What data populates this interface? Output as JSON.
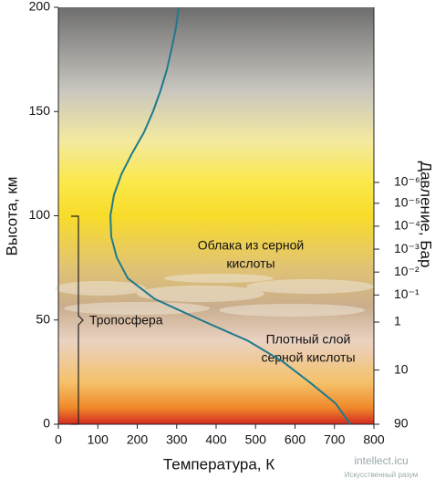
{
  "chart_data": {
    "type": "line",
    "xlabel": "Температура, К",
    "ylabel": "Высота, км",
    "y2label": "Давление, Бар",
    "x": [
      740,
      703,
      638,
      569,
      481,
      361,
      303,
      245,
      176,
      148,
      134,
      132,
      141,
      160,
      187,
      217,
      240,
      259,
      275,
      287,
      298,
      305
    ],
    "series": [
      {
        "color": "#1f7a8c",
        "values": [
          0,
          10,
          20,
          30,
          40,
          50,
          55,
          60,
          70,
          80,
          90,
          100,
          110,
          120,
          130,
          140,
          150,
          160,
          170,
          180,
          190,
          200
        ]
      }
    ],
    "xlim": [
      0,
      800
    ],
    "xticks": [
      0,
      100,
      200,
      300,
      400,
      500,
      600,
      700,
      800
    ],
    "ylim": [
      0,
      200
    ],
    "yticks": [
      0,
      50,
      100,
      150,
      200
    ],
    "pressure_levels": [
      {
        "altitude": 0,
        "label": "90"
      },
      {
        "altitude": 26,
        "label": "10"
      },
      {
        "altitude": 49,
        "label": "1"
      },
      {
        "altitude": 62,
        "label": "10⁻¹"
      },
      {
        "altitude": 73,
        "label": "10⁻²"
      },
      {
        "altitude": 84,
        "label": "10⁻³"
      },
      {
        "altitude": 95,
        "label": "10⁻⁴"
      },
      {
        "altitude": 106,
        "label": "10⁻⁵"
      },
      {
        "altitude": 116,
        "label": "10⁻⁶"
      }
    ],
    "annotations": [
      {
        "lines": [
          "Облака из серной",
          "кислоты"
        ]
      },
      {
        "lines": [
          "Плотный слой",
          "серной кислоты"
        ]
      },
      {
        "lines": [
          "Тропосфера"
        ]
      }
    ],
    "watermark": [
      "intellect.icu",
      "Искусственный разум"
    ]
  }
}
